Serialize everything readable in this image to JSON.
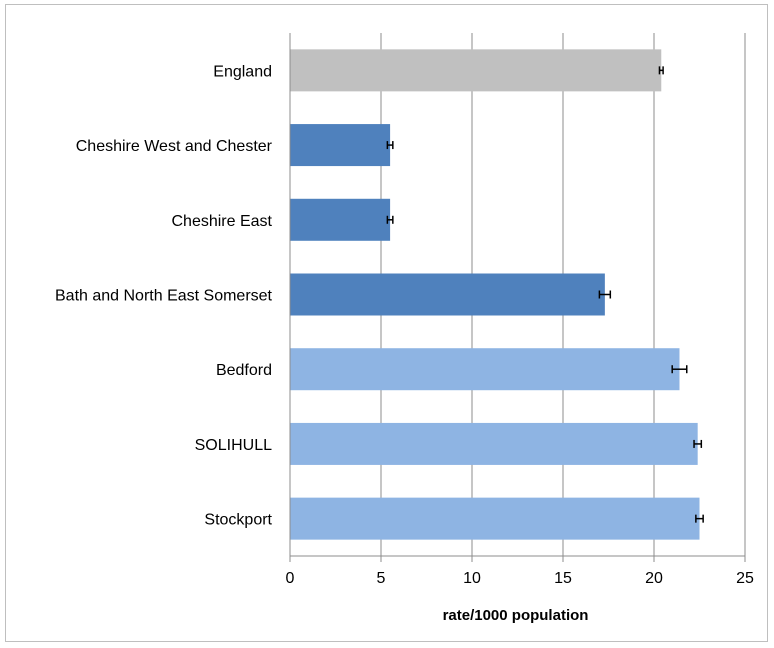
{
  "chart_data": {
    "type": "bar",
    "orientation": "horizontal",
    "categories": [
      "England",
      "Cheshire West and Chester",
      "Cheshire East",
      "Bath and North East Somerset",
      "Bedford",
      "SOLIHULL",
      "Stockport"
    ],
    "values": [
      20.4,
      5.5,
      5.5,
      17.3,
      21.4,
      22.4,
      22.5
    ],
    "error_low": [
      20.3,
      5.35,
      5.35,
      17.0,
      21.0,
      22.2,
      22.3
    ],
    "error_high": [
      20.5,
      5.65,
      5.65,
      17.6,
      21.8,
      22.6,
      22.7
    ],
    "bar_colors": [
      "#c0c0c0",
      "#4f81bd",
      "#4f81bd",
      "#4f81bd",
      "#8eb4e3",
      "#8eb4e3",
      "#8eb4e3"
    ],
    "xlabel": "rate/1000 population",
    "ylabel": "",
    "xlim": [
      0,
      25
    ],
    "x_ticks": [
      0,
      5,
      10,
      15,
      20,
      25
    ],
    "grid": true,
    "legend": "none"
  }
}
